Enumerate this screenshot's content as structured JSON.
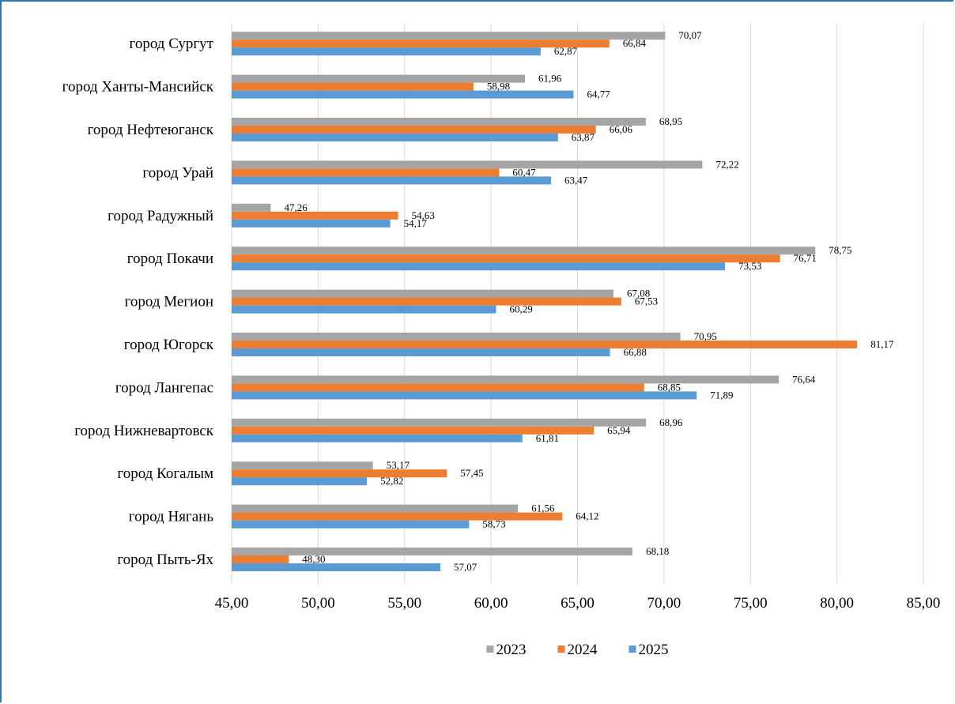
{
  "chart_data": {
    "type": "bar",
    "orientation": "horizontal",
    "categories": [
      "город Сургут",
      "город Ханты-Мансийск",
      "город Нефтеюганск",
      "город Урай",
      "город Радужный",
      "город Покачи",
      "город Мегион",
      "город Югорск",
      "город Лангепас",
      "город Нижневартовск",
      "город Когалым",
      "город Нягань",
      "город Пыть-Ях"
    ],
    "series": [
      {
        "name": "2023",
        "color": "#a5a5a5",
        "values": [
          70.07,
          61.96,
          68.95,
          72.22,
          47.26,
          78.75,
          67.08,
          70.95,
          76.64,
          68.96,
          53.17,
          61.56,
          68.18
        ],
        "labels": [
          "70,07",
          "61,96",
          "68,95",
          "72,22",
          "47,26",
          "78,75",
          "67,08",
          "70,95",
          "76,64",
          "68,96",
          "53,17",
          "61,56",
          "68,18"
        ]
      },
      {
        "name": "2024",
        "color": "#ed7d31",
        "values": [
          66.84,
          58.98,
          66.06,
          60.47,
          54.63,
          76.71,
          67.53,
          81.17,
          68.85,
          65.94,
          57.45,
          64.12,
          48.3
        ],
        "labels": [
          "66,84",
          "58,98",
          "66,06",
          "60,47",
          "54,63",
          "76,71",
          "67,53",
          "81,17",
          "68,85",
          "65,94",
          "57,45",
          "64,12",
          "48,30"
        ]
      },
      {
        "name": "2025",
        "color": "#5b9bd5",
        "values": [
          62.87,
          64.77,
          63.87,
          63.47,
          54.17,
          73.53,
          60.29,
          66.88,
          71.89,
          61.81,
          52.82,
          58.73,
          57.07
        ],
        "labels": [
          "62,87",
          "64,77",
          "63,87",
          "63,47",
          "54,17",
          "73,53",
          "60,29",
          "66,88",
          "71,89",
          "61,81",
          "52,82",
          "58,73",
          "57,07"
        ]
      }
    ],
    "xlim": [
      45,
      85
    ],
    "xticks": [
      45,
      50,
      55,
      60,
      65,
      70,
      75,
      80,
      85
    ],
    "xtick_labels": [
      "45,00",
      "50,00",
      "55,00",
      "60,00",
      "65,00",
      "70,00",
      "75,00",
      "80,00",
      "85,00"
    ],
    "grid": true,
    "legend_position": "bottom"
  }
}
